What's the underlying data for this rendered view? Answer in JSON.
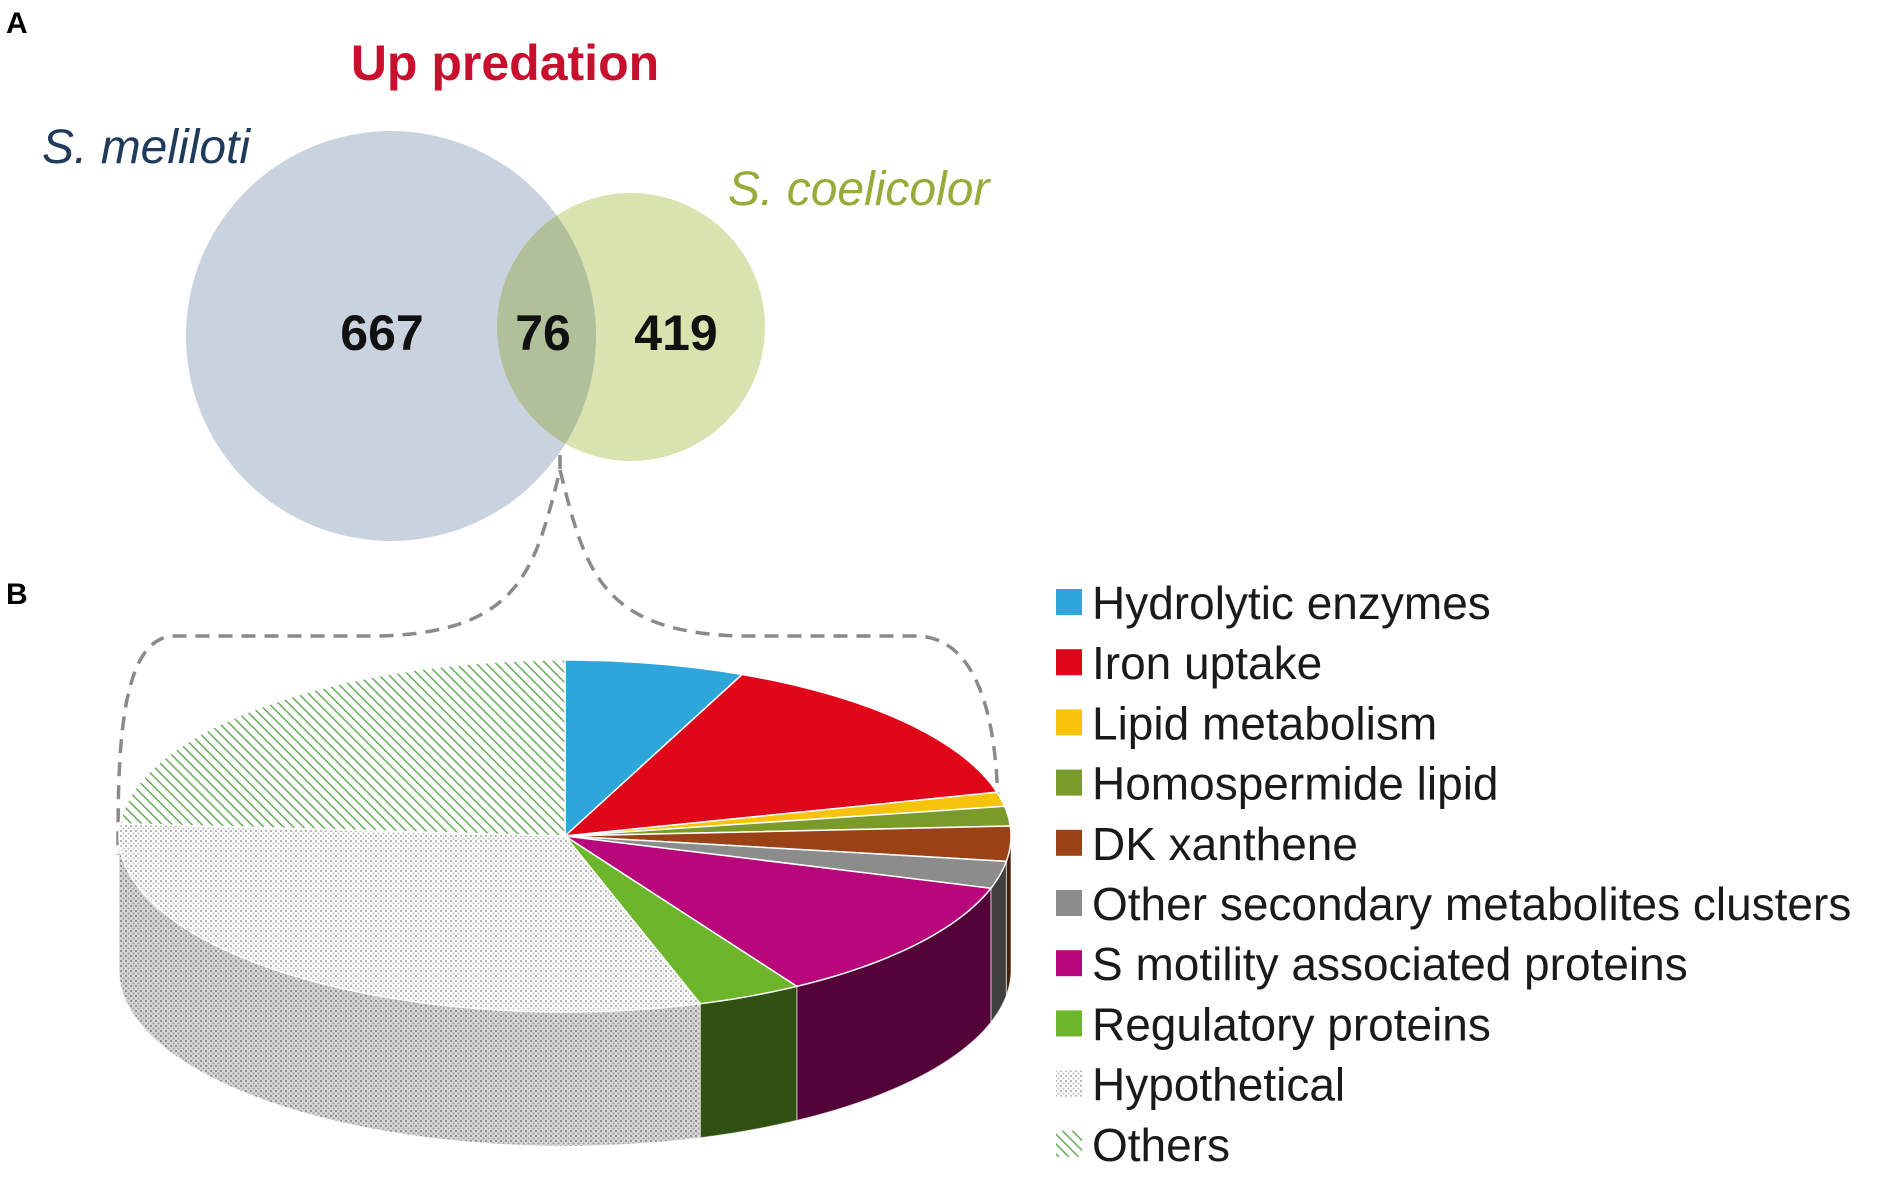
{
  "panel_a": "A",
  "panel_b": "B",
  "chart_data": [
    {
      "type": "venn",
      "title": "Up predation",
      "sets": [
        {
          "name": "S. meliloti",
          "only": 667,
          "color": "#c9d3df",
          "label_color": "#1f3a5a"
        },
        {
          "name": "S. coelicolor",
          "only": 419,
          "color": "#d9e3b0",
          "label_color": "#9aaa3a"
        }
      ],
      "intersection": 76,
      "overlap_color": "#b0c09b",
      "title_color": "#c8102e"
    },
    {
      "type": "pie",
      "style": "3d",
      "categories": [
        "Hydrolytic enzymes",
        "Iron uptake",
        "Lipid metabolism",
        "Homospermide lipid",
        "DK xanthene",
        "Other secondary metabolites clusters",
        "S motility associated proteins",
        "Regulatory proteins",
        "Hypothetical",
        "Others"
      ],
      "values": [
        6.5,
        14.5,
        1.3,
        1.8,
        3.2,
        2.5,
        11.5,
        3.8,
        31.0,
        23.9
      ],
      "colors": [
        "#2ea6da",
        "#e1071b",
        "#f7c30c",
        "#7a9a2a",
        "#9a4215",
        "#8c8c8c",
        "#b8077a",
        "#6db52a",
        "#e4e4e4",
        "#4fa23f"
      ],
      "patterns": [
        "solid",
        "solid",
        "solid",
        "solid",
        "solid",
        "solid",
        "solid",
        "solid",
        "dots",
        "hatch"
      ],
      "legend": "right"
    }
  ]
}
